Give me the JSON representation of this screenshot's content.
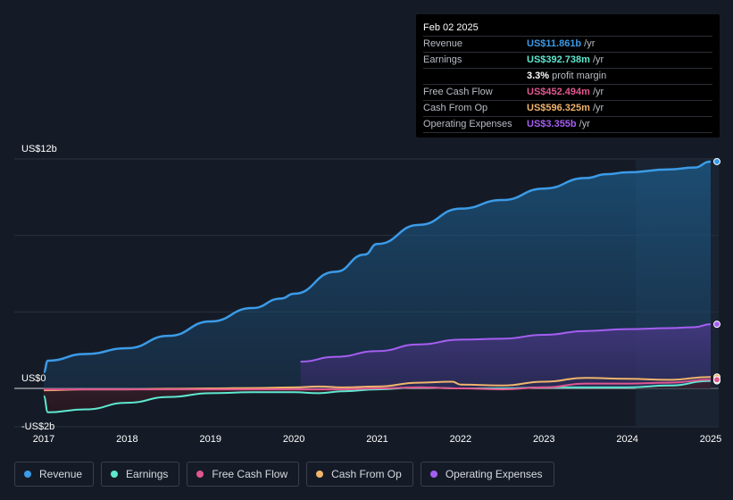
{
  "tooltip": {
    "date": "Feb 02 2025",
    "rows": [
      {
        "label": "Revenue",
        "value": "US$11.861b",
        "unit": "/yr",
        "color": "#3b9be8"
      },
      {
        "label": "Earnings",
        "value": "US$392.738m",
        "unit": "/yr",
        "color": "#5ee8d0"
      },
      {
        "label": "",
        "value": "3.3%",
        "unit": "profit margin",
        "color": "#ffffff"
      },
      {
        "label": "Free Cash Flow",
        "value": "US$452.494m",
        "unit": "/yr",
        "color": "#e0578f"
      },
      {
        "label": "Cash From Op",
        "value": "US$596.325m",
        "unit": "/yr",
        "color": "#f0b46c"
      },
      {
        "label": "Operating Expenses",
        "value": "US$3.355b",
        "unit": "/yr",
        "color": "#a55ef2"
      }
    ]
  },
  "legend": [
    {
      "label": "Revenue",
      "color": "#3b9be8"
    },
    {
      "label": "Earnings",
      "color": "#5ee8d0"
    },
    {
      "label": "Free Cash Flow",
      "color": "#e0578f"
    },
    {
      "label": "Cash From Op",
      "color": "#f0b46c"
    },
    {
      "label": "Operating Expenses",
      "color": "#a55ef2"
    }
  ],
  "chart_data": {
    "type": "area",
    "title": "",
    "xlabel": "",
    "ylabel": "",
    "ylim": [
      -2,
      12
    ],
    "xlim": [
      2017,
      2025.1
    ],
    "y_tick_labels": [
      {
        "value": 12,
        "label": "US$12b"
      },
      {
        "value": 0,
        "label": "US$0"
      },
      {
        "value": -2,
        "label": "-US$2b"
      }
    ],
    "x_tick_labels": [
      "2017",
      "2018",
      "2019",
      "2020",
      "2021",
      "2022",
      "2023",
      "2024",
      "2025"
    ],
    "x_ticks": [
      2017,
      2018,
      2019,
      2020,
      2021,
      2022,
      2023,
      2024,
      2025
    ],
    "forecast_shade_start": 2024.1,
    "series": [
      {
        "name": "Revenue",
        "color": "#3b9be8",
        "x": [
          2017.0,
          2017.05,
          2017.5,
          2018.0,
          2018.5,
          2019.0,
          2019.5,
          2019.85,
          2020.0,
          2020.5,
          2020.85,
          2021.0,
          2021.5,
          2022.0,
          2022.5,
          2023.0,
          2023.5,
          2023.75,
          2024.0,
          2024.5,
          2024.8,
          2025.0
        ],
        "values": [
          0.85,
          1.45,
          1.8,
          2.1,
          2.75,
          3.5,
          4.2,
          4.7,
          4.95,
          6.1,
          7.0,
          7.55,
          8.55,
          9.4,
          9.85,
          10.45,
          11.0,
          11.2,
          11.3,
          11.45,
          11.55,
          11.861
        ]
      },
      {
        "name": "Earnings",
        "color": "#5ee8d0",
        "x": [
          2017.0,
          2017.05,
          2017.5,
          2018.0,
          2018.5,
          2019.0,
          2019.5,
          2020.0,
          2020.3,
          2020.6,
          2021.0,
          2021.5,
          2022.0,
          2022.5,
          2023.0,
          2023.5,
          2024.0,
          2024.5,
          2025.0
        ],
        "values": [
          -0.4,
          -1.25,
          -1.1,
          -0.75,
          -0.45,
          -0.25,
          -0.2,
          -0.2,
          -0.25,
          -0.15,
          -0.05,
          0.05,
          0.0,
          0.0,
          0.05,
          0.05,
          0.05,
          0.15,
          0.392738
        ]
      },
      {
        "name": "Free Cash Flow",
        "color": "#e0578f",
        "x": [
          2017.0,
          2017.5,
          2018.0,
          2018.5,
          2019.0,
          2019.5,
          2020.0,
          2020.3,
          2020.6,
          2021.0,
          2021.5,
          2022.0,
          2022.5,
          2023.0,
          2023.5,
          2024.0,
          2024.5,
          2025.0
        ],
        "values": [
          -0.05,
          -0.05,
          -0.05,
          -0.05,
          -0.05,
          -0.05,
          -0.05,
          -0.05,
          -0.05,
          0.0,
          0.05,
          0.0,
          -0.05,
          0.05,
          0.25,
          0.25,
          0.3,
          0.452494
        ]
      },
      {
        "name": "Cash From Op",
        "color": "#f0b46c",
        "x": [
          2017.0,
          2017.5,
          2018.0,
          2018.5,
          2019.0,
          2019.5,
          2020.0,
          2020.3,
          2020.6,
          2021.0,
          2021.5,
          2021.9,
          2022.0,
          2022.5,
          2023.0,
          2023.5,
          2024.0,
          2024.5,
          2025.0
        ],
        "values": [
          -0.1,
          -0.05,
          -0.05,
          -0.02,
          0.0,
          0.02,
          0.05,
          0.1,
          0.05,
          0.1,
          0.3,
          0.35,
          0.2,
          0.15,
          0.35,
          0.55,
          0.5,
          0.45,
          0.596325
        ]
      },
      {
        "name": "Operating Expenses",
        "color": "#a55ef2",
        "x": [
          2020.08,
          2020.5,
          2021.0,
          2021.5,
          2022.0,
          2022.5,
          2023.0,
          2023.5,
          2024.0,
          2024.5,
          2024.8,
          2025.0
        ],
        "values": [
          1.4,
          1.65,
          1.95,
          2.3,
          2.55,
          2.6,
          2.8,
          3.0,
          3.1,
          3.15,
          3.2,
          3.355
        ]
      }
    ]
  }
}
